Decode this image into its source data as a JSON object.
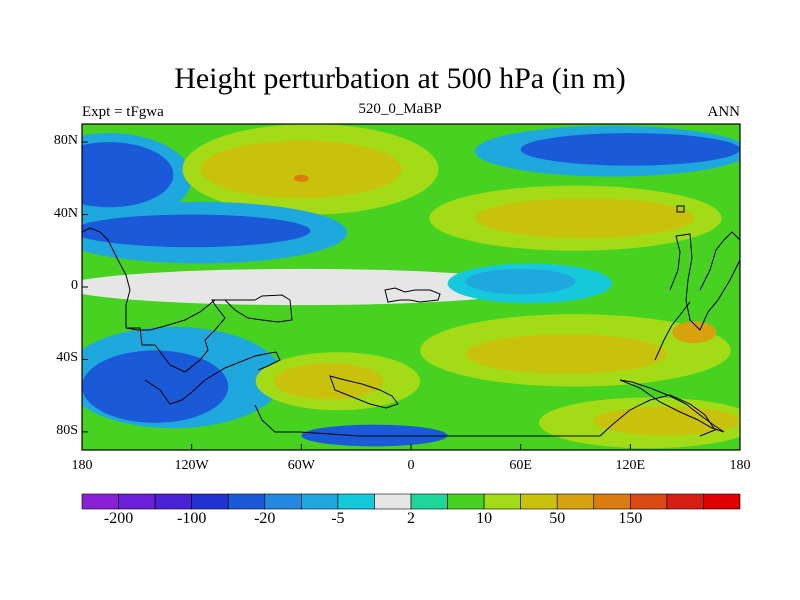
{
  "title": "Height perturbation at 500 hPa (in m)",
  "left_label": "Expt = tFgwa",
  "center_label": "520_0_MaBP",
  "right_label": "ANN",
  "map": {
    "projection": "cylindrical-equidistant",
    "lon_range": [
      -180,
      180
    ],
    "lat_range": [
      -90,
      90
    ],
    "lon_ticks": [
      {
        "value": -180,
        "label": "180"
      },
      {
        "value": -120,
        "label": "120W"
      },
      {
        "value": -60,
        "label": "60W"
      },
      {
        "value": 0,
        "label": "0"
      },
      {
        "value": 60,
        "label": "60E"
      },
      {
        "value": 120,
        "label": "120E"
      },
      {
        "value": 180,
        "label": "180"
      }
    ],
    "lat_ticks": [
      {
        "value": 80,
        "label": "80N"
      },
      {
        "value": 40,
        "label": "40N"
      },
      {
        "value": 0,
        "label": "0"
      },
      {
        "value": -40,
        "label": "40S"
      },
      {
        "value": -80,
        "label": "80S"
      }
    ],
    "background_color": "#e6e6e6"
  },
  "colorbar": {
    "colors": [
      "#8b1fd6",
      "#6a1fd8",
      "#4a22d6",
      "#2233d2",
      "#1a5ad8",
      "#2288e0",
      "#1fa8dd",
      "#16c8dc",
      "#e6e6e6",
      "#1fd69a",
      "#47d222",
      "#a3dc16",
      "#c8c20c",
      "#d8a20f",
      "#da7c10",
      "#d84a12",
      "#d81c16",
      "#e00000"
    ],
    "tick_labels": [
      "-200",
      "-100",
      "-20",
      "-5",
      "2",
      "10",
      "50",
      "150"
    ]
  },
  "regions": [
    {
      "name": "tropical-band-neutral",
      "color": "#e6e6e6",
      "lon": -60,
      "lat": 0,
      "rx": 130,
      "ry": 10
    },
    {
      "name": "north-pacific-negative-outer",
      "color": "#1fa8dd",
      "lon": -165,
      "lat": 60,
      "rx": 45,
      "ry": 25
    },
    {
      "name": "north-pacific-negative-core",
      "color": "#1a5ad8",
      "lon": -165,
      "lat": 62,
      "rx": 35,
      "ry": 18
    },
    {
      "name": "north-atlantic-positive-outer",
      "color": "#a3dc16",
      "lon": -55,
      "lat": 65,
      "rx": 70,
      "ry": 25
    },
    {
      "name": "north-atlantic-positive-core",
      "color": "#c8c20c",
      "lon": -60,
      "lat": 65,
      "rx": 55,
      "ry": 16
    },
    {
      "name": "north-atlantic-peak",
      "color": "#da7c10",
      "lon": -60,
      "lat": 60,
      "rx": 4,
      "ry": 2
    },
    {
      "name": "eurasia-negative-outer",
      "color": "#1fa8dd",
      "lon": 110,
      "lat": 75,
      "rx": 75,
      "ry": 14
    },
    {
      "name": "eurasia-negative-core",
      "color": "#1a5ad8",
      "lon": 120,
      "lat": 76,
      "rx": 60,
      "ry": 9
    },
    {
      "name": "central-asia-positive-outer",
      "color": "#a3dc16",
      "lon": 90,
      "lat": 38,
      "rx": 80,
      "ry": 18
    },
    {
      "name": "central-asia-positive-core",
      "color": "#c8c20c",
      "lon": 95,
      "lat": 38,
      "rx": 60,
      "ry": 11
    },
    {
      "name": "north-america-negative-outer",
      "color": "#1fa8dd",
      "lon": -115,
      "lat": 30,
      "rx": 80,
      "ry": 17
    },
    {
      "name": "north-america-negative-core",
      "color": "#1a5ad8",
      "lon": -120,
      "lat": 31,
      "rx": 65,
      "ry": 9
    },
    {
      "name": "indian-ocean-tropical-negative",
      "color": "#16c8dc",
      "lon": 65,
      "lat": 2,
      "rx": 45,
      "ry": 11
    },
    {
      "name": "indian-ocean-tropical-core",
      "color": "#1fa8dd",
      "lon": 60,
      "lat": 3,
      "rx": 30,
      "ry": 7
    },
    {
      "name": "south-pacific-negative-outer",
      "color": "#1fa8dd",
      "lon": -130,
      "lat": -50,
      "rx": 60,
      "ry": 28
    },
    {
      "name": "south-pacific-negative-core",
      "color": "#1a5ad8",
      "lon": -140,
      "lat": -55,
      "rx": 40,
      "ry": 20
    },
    {
      "name": "south-atlantic-positive-outer",
      "color": "#a3dc16",
      "lon": -40,
      "lat": -52,
      "rx": 45,
      "ry": 16
    },
    {
      "name": "south-atlantic-positive-core",
      "color": "#c8c20c",
      "lon": -45,
      "lat": -52,
      "rx": 30,
      "ry": 10
    },
    {
      "name": "southern-ocean-negative",
      "color": "#1a5ad8",
      "lon": -20,
      "lat": -82,
      "rx": 40,
      "ry": 6
    },
    {
      "name": "south-indian-positive-outer",
      "color": "#a3dc16",
      "lon": 90,
      "lat": -35,
      "rx": 85,
      "ry": 20
    },
    {
      "name": "south-indian-positive-core",
      "color": "#c8c20c",
      "lon": 85,
      "lat": -37,
      "rx": 55,
      "ry": 11
    },
    {
      "name": "south-indian-peak",
      "color": "#d8a20f",
      "lon": 155,
      "lat": -25,
      "rx": 12,
      "ry": 6
    },
    {
      "name": "southern-ocean-positive-outer",
      "color": "#a3dc16",
      "lon": 130,
      "lat": -75,
      "rx": 60,
      "ry": 14
    },
    {
      "name": "southern-ocean-positive-core",
      "color": "#c8c20c",
      "lon": 140,
      "lat": -74,
      "rx": 40,
      "ry": 8
    }
  ]
}
